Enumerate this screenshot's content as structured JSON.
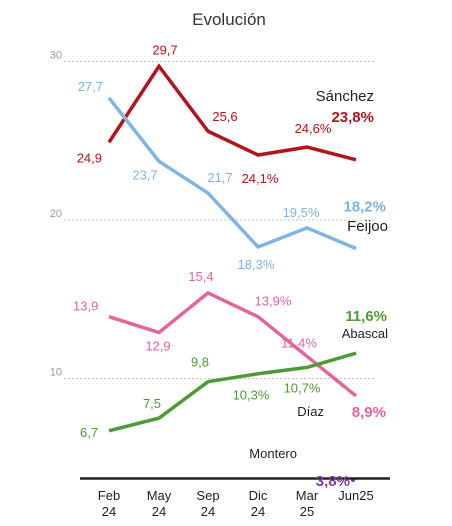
{
  "chart_data": {
    "type": "line",
    "title": "Evolución",
    "categories": [
      "Feb\n24",
      "May\n24",
      "Sep\n24",
      "Dic\n24",
      "Mar\n25",
      "Jun25"
    ],
    "y_axis": {
      "ticks": [
        "10",
        "20",
        "30"
      ],
      "tick_values": [
        10,
        20,
        30
      ],
      "ylim": [
        0,
        31
      ],
      "grid": "dashed"
    },
    "series": [
      {
        "name": "Sánchez",
        "color": "#b0151b",
        "values": [
          24.9,
          29.7,
          25.6,
          24.1,
          24.6,
          23.8
        ],
        "labels": [
          "24,9",
          "29,7",
          "25,6",
          "24,1%",
          "24,6%",
          "23,8%"
        ]
      },
      {
        "name": "Feijoo",
        "color": "#7fb5e0",
        "values": [
          27.7,
          23.7,
          21.7,
          18.3,
          19.5,
          18.2
        ],
        "labels": [
          "27,7",
          "23,7",
          "21,7",
          "18,3%",
          "19,5%",
          "18,2%"
        ]
      },
      {
        "name": "Díaz",
        "color": "#e2669b",
        "values": [
          13.9,
          12.9,
          15.4,
          13.9,
          11.4,
          8.9
        ],
        "labels": [
          "13,9",
          "12,9",
          "15,4",
          "13,9%",
          "11,4%",
          "8,9%"
        ]
      },
      {
        "name": "Abascal",
        "color": "#4f9a36",
        "values": [
          6.7,
          7.5,
          9.8,
          10.3,
          10.7,
          11.6
        ],
        "labels": [
          "6,7",
          "7,5",
          "9,8",
          "10,3%",
          "10,7%",
          "11,6%"
        ]
      },
      {
        "name": "Montero",
        "color": "#7b3fa0",
        "values": [
          null,
          null,
          null,
          null,
          null,
          3.8
        ],
        "labels": [
          "",
          "",
          "",
          "",
          "",
          "3,8%"
        ]
      }
    ]
  }
}
